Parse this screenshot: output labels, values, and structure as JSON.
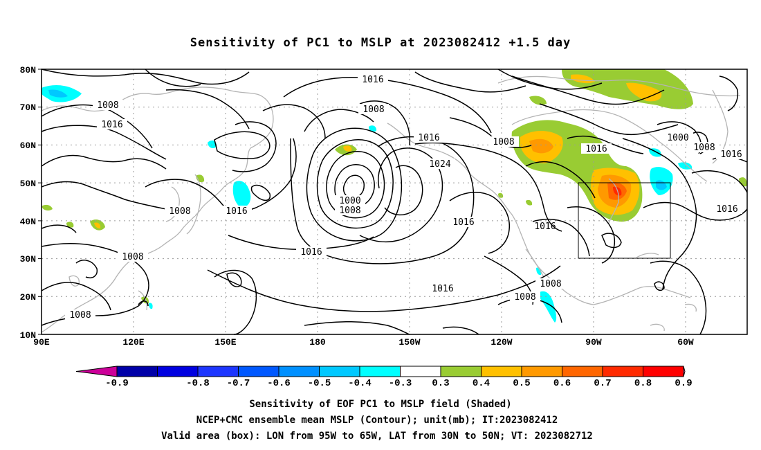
{
  "title": "Sensitivity of PC1 to MSLP at 2023082412 +1.5 day",
  "lat_ticks": [
    "80N",
    "70N",
    "60N",
    "50N",
    "40N",
    "30N",
    "20N",
    "10N"
  ],
  "lon_ticks": [
    "90E",
    "120E",
    "150E",
    "180",
    "150W",
    "120W",
    "90W",
    "60W"
  ],
  "contour_labels": [
    "1016",
    "1008",
    "1016",
    "1008",
    "1016",
    "1024",
    "1000",
    "1008",
    "1016",
    "1016",
    "1008",
    "1016",
    "1000",
    "1008",
    "1016",
    "1016",
    "1008",
    "1016",
    "1008",
    "1016",
    "1008",
    "1008",
    "1008"
  ],
  "colorbar": {
    "labels": [
      "-0.9",
      "-0.8",
      "-0.7",
      "-0.6",
      "-0.5",
      "-0.4",
      "-0.3",
      "0.3",
      "0.4",
      "0.5",
      "0.6",
      "0.7",
      "0.8",
      "0.9"
    ],
    "colors": [
      "#0000a8",
      "#0000e0",
      "#1d36ff",
      "#0058ff",
      "#0090ff",
      "#00c8ff",
      "#00ffff",
      "#ffffff",
      "#99cc33",
      "#ffc000",
      "#ff9900",
      "#ff6600",
      "#ff2a00",
      "#ff0000"
    ],
    "low_end_color": "#cc0099",
    "high_end_color": "#ff88cc"
  },
  "caption": {
    "line1": "Sensitivity of EOF PC1 to MSLP field (Shaded)",
    "line2": "NCEP+CMC ensemble mean MSLP (Contour); unit(mb); IT:2023082412",
    "line3": "Valid area (box): LON from 95W to 65W, LAT from 30N to 50N; VT: 2023082712"
  }
}
